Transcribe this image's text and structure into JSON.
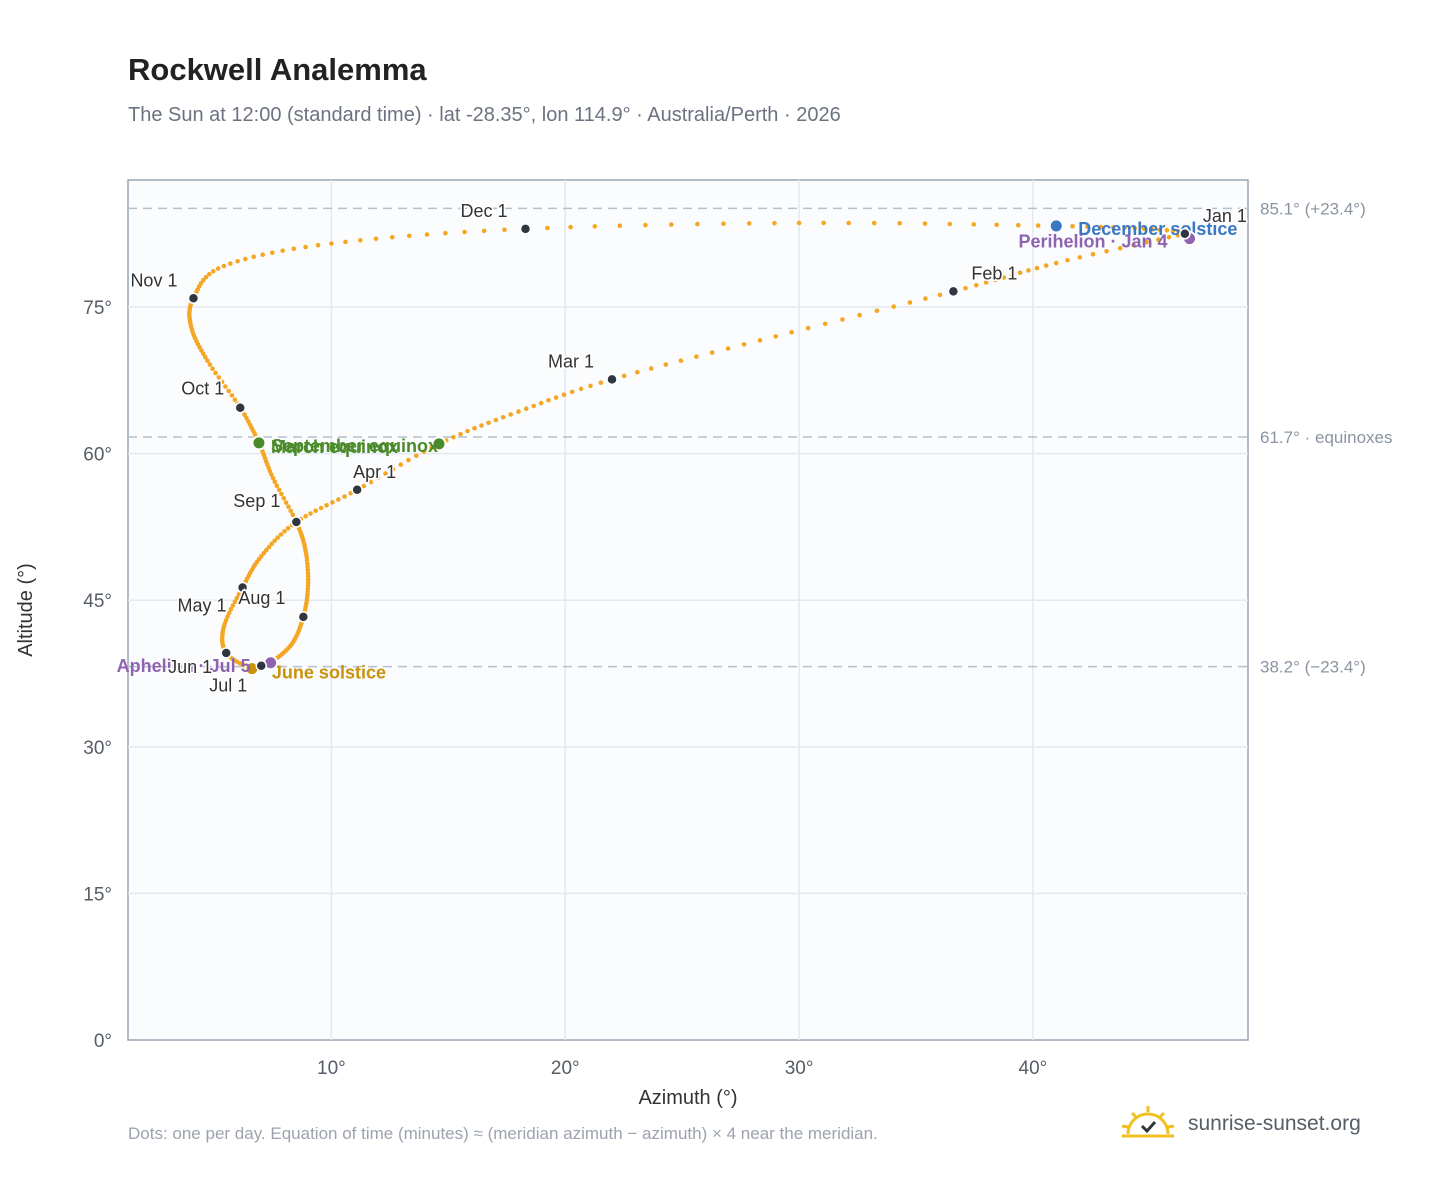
{
  "header": {
    "title": "Rockwell Analemma",
    "subtitle": "The Sun at 12:00 (standard time) · lat -28.35°, lon 114.9° · Australia/Perth · 2026"
  },
  "footer": {
    "note": "Dots: one per day. Equation of time (minutes) ≈ (meridian azimuth − azimuth) × 4 near the meridian.",
    "brand": "sunrise-sunset.org"
  },
  "colors": {
    "curve": "#f5a623",
    "month_marker": "#2f3640",
    "december_solstice": "#3a78c2",
    "june_solstice": "#c9920a",
    "equinox": "#4a8a2a",
    "perihelion_aphelion": "#8e63b0",
    "reference_line": "#b4c0cc",
    "plot_bg": "#fafcfe",
    "plot_border": "#9aa6b4"
  },
  "chart_data": {
    "type": "scatter",
    "title": "Rockwell Analemma",
    "xlabel": "Azimuth (°)",
    "ylabel": "Altitude (°)",
    "xlim": [
      1.3,
      49.2
    ],
    "ylim": [
      0,
      88
    ],
    "x_ticks": [
      "10°",
      "20°",
      "30°",
      "40°"
    ],
    "x_tick_values": [
      10,
      20,
      30,
      40
    ],
    "y_ticks": [
      "0°",
      "15°",
      "30°",
      "45°",
      "60°",
      "75°"
    ],
    "y_tick_values": [
      0,
      15,
      30,
      45,
      60,
      75
    ],
    "grid": true,
    "reference_lines": [
      {
        "y": 85.1,
        "label": "85.1° (+23.4°)"
      },
      {
        "y": 61.7,
        "label": "61.7° · equinoxes"
      },
      {
        "y": 38.2,
        "label": "38.2° (−23.4°)"
      }
    ],
    "month_markers": [
      {
        "label": "Jan 1",
        "az": 46.5,
        "alt": 82.5
      },
      {
        "label": "Feb 1",
        "az": 36.6,
        "alt": 76.6
      },
      {
        "label": "Mar 1",
        "az": 22.0,
        "alt": 67.6
      },
      {
        "label": "Apr 1",
        "az": 11.1,
        "alt": 56.3
      },
      {
        "label": "May 1",
        "az": 6.2,
        "alt": 46.3
      },
      {
        "label": "Jun 1",
        "az": 5.5,
        "alt": 39.6
      },
      {
        "label": "Jul 1",
        "az": 7.0,
        "alt": 38.3
      },
      {
        "label": "Aug 1",
        "az": 8.8,
        "alt": 43.3
      },
      {
        "label": "Sep 1",
        "az": 8.5,
        "alt": 53.0
      },
      {
        "label": "Oct 1",
        "az": 6.1,
        "alt": 64.7
      },
      {
        "label": "Nov 1",
        "az": 4.1,
        "alt": 75.9
      },
      {
        "label": "Dec 1",
        "az": 18.3,
        "alt": 83.0
      }
    ],
    "events": [
      {
        "label": "December solstice",
        "az": 41.0,
        "alt": 83.3
      },
      {
        "label": "Perihelion · Jan 4",
        "az": 46.7,
        "alt": 82.0
      },
      {
        "label": "March equinox",
        "az": 14.6,
        "alt": 61.0
      },
      {
        "label": "September equinox",
        "az": 6.9,
        "alt": 61.1
      },
      {
        "label": "June solstice",
        "az": 6.6,
        "alt": 38.0
      },
      {
        "label": "Aphelion · Jul 5",
        "az": 7.4,
        "alt": 38.6
      }
    ],
    "daily_curve": [
      {
        "az": 46.5,
        "alt": 82.5
      },
      {
        "az": 41.0,
        "alt": 79.5
      },
      {
        "az": 36.6,
        "alt": 76.6
      },
      {
        "az": 29.0,
        "alt": 72.0
      },
      {
        "az": 22.0,
        "alt": 67.6
      },
      {
        "az": 18.0,
        "alt": 64.3
      },
      {
        "az": 14.6,
        "alt": 61.0
      },
      {
        "az": 11.1,
        "alt": 56.3
      },
      {
        "az": 8.5,
        "alt": 53.0
      },
      {
        "az": 7.0,
        "alt": 49.5
      },
      {
        "az": 6.2,
        "alt": 46.3
      },
      {
        "az": 5.4,
        "alt": 42.3
      },
      {
        "az": 5.5,
        "alt": 39.6
      },
      {
        "az": 6.6,
        "alt": 38.0
      },
      {
        "az": 7.0,
        "alt": 38.3
      },
      {
        "az": 7.4,
        "alt": 38.6
      },
      {
        "az": 8.3,
        "alt": 40.5
      },
      {
        "az": 8.8,
        "alt": 43.3
      },
      {
        "az": 9.0,
        "alt": 46.5
      },
      {
        "az": 8.9,
        "alt": 50.0
      },
      {
        "az": 8.5,
        "alt": 53.0
      },
      {
        "az": 7.5,
        "alt": 57.5
      },
      {
        "az": 6.9,
        "alt": 61.1
      },
      {
        "az": 6.1,
        "alt": 64.7
      },
      {
        "az": 4.7,
        "alt": 69.5
      },
      {
        "az": 4.0,
        "alt": 73.0
      },
      {
        "az": 4.1,
        "alt": 75.9
      },
      {
        "az": 5.4,
        "alt": 79.2
      },
      {
        "az": 10.0,
        "alt": 81.5
      },
      {
        "az": 18.3,
        "alt": 83.0
      },
      {
        "az": 30.0,
        "alt": 83.6
      },
      {
        "az": 41.0,
        "alt": 83.3
      },
      {
        "az": 46.0,
        "alt": 82.8
      },
      {
        "az": 46.7,
        "alt": 82.0
      }
    ]
  }
}
